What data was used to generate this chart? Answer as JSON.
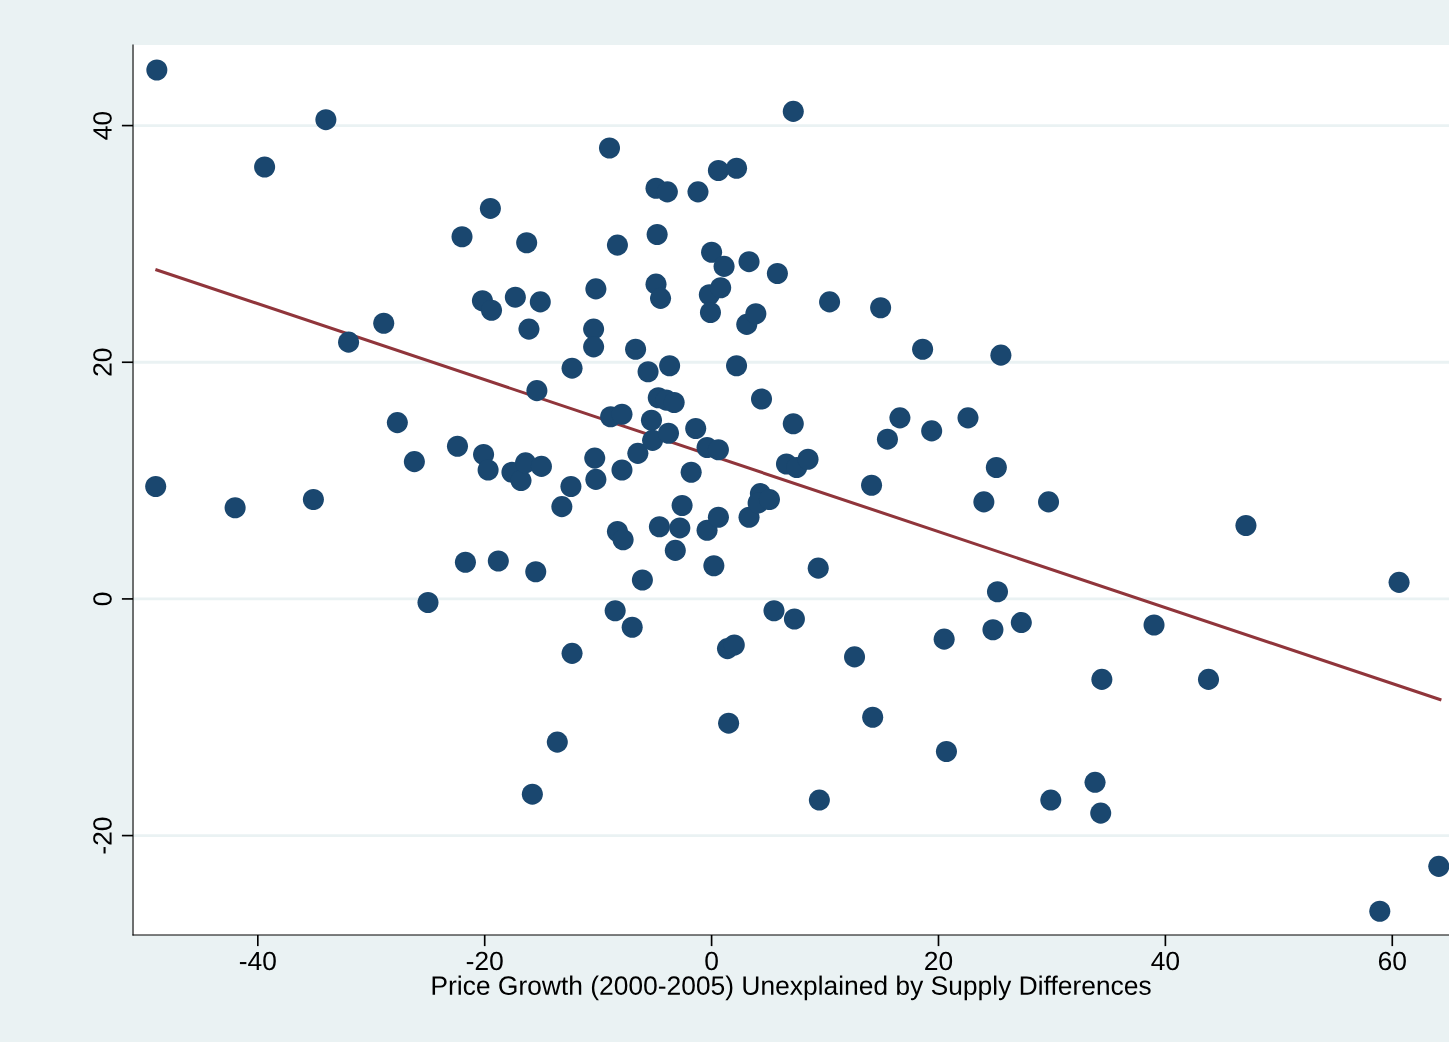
{
  "chart_data": {
    "type": "scatter",
    "xlabel": "Price Growth (2000-2005) Unexplained by Supply Differences",
    "xlim": [
      -51,
      65
    ],
    "ylim": [
      -28.4,
      46.8
    ],
    "xticks": [
      -40,
      -20,
      0,
      20,
      40,
      60
    ],
    "yticks": [
      -20,
      0,
      20,
      40
    ],
    "grid": "y",
    "series": [
      {
        "marker": "circle",
        "color": "#1a476f",
        "x": [
          -48.9,
          -34.0,
          -39.4,
          -49.0,
          -42.0,
          -35.1,
          -32.0,
          -28.9,
          -27.7,
          -26.2,
          -25.0,
          -22.0,
          -22.4,
          -21.7,
          -19.5,
          -20.2,
          -19.4,
          -20.1,
          -19.7,
          -18.8,
          -17.3,
          -17.6,
          -16.8,
          -16.4,
          -16.3,
          -16.1,
          -15.1,
          -15.4,
          -15.0,
          -15.5,
          -15.8,
          -13.6,
          -13.2,
          -12.4,
          -12.3,
          -12.3,
          -10.2,
          -10.4,
          -10.4,
          -10.3,
          -10.2,
          -9.0,
          -8.9,
          -8.3,
          -8.3,
          -7.9,
          -7.9,
          -7.8,
          -8.5,
          -7.0,
          -6.7,
          -6.5,
          -6.1,
          -5.6,
          -5.3,
          -5.2,
          -4.9,
          -4.8,
          -4.9,
          -4.5,
          -4.7,
          -4.6,
          -3.9,
          -4.0,
          -3.7,
          -3.3,
          -3.8,
          -3.2,
          -2.8,
          -2.6,
          -1.8,
          -1.4,
          -1.2,
          -0.4,
          -0.4,
          -0.2,
          -0.1,
          0.0,
          0.2,
          0.6,
          0.6,
          0.6,
          0.8,
          1.1,
          1.4,
          2.0,
          1.5,
          2.2,
          2.2,
          3.1,
          3.3,
          3.3,
          3.9,
          4.4,
          4.3,
          4.1,
          5.1,
          5.5,
          5.8,
          6.6,
          7.2,
          7.2,
          7.5,
          7.3,
          8.5,
          9.4,
          9.5,
          10.4,
          12.6,
          14.1,
          14.2,
          14.9,
          15.5,
          16.6,
          18.6,
          19.4,
          20.5,
          20.7,
          22.6,
          24.0,
          24.8,
          25.1,
          25.2,
          25.5,
          27.3,
          29.7,
          29.9,
          33.8,
          34.3,
          34.4,
          39.0,
          43.8,
          47.1,
          58.9,
          60.6,
          64.1
        ],
        "values": [
          44.7,
          40.5,
          36.5,
          9.5,
          7.7,
          8.4,
          21.7,
          23.3,
          14.9,
          11.6,
          -0.3,
          30.6,
          12.9,
          3.1,
          33.0,
          25.2,
          24.4,
          12.2,
          10.9,
          3.2,
          25.5,
          10.7,
          10.0,
          11.5,
          30.1,
          22.8,
          25.1,
          17.6,
          11.2,
          2.3,
          -16.5,
          -12.1,
          7.8,
          9.5,
          19.5,
          -4.6,
          26.2,
          22.8,
          21.3,
          11.9,
          10.1,
          38.1,
          15.4,
          29.9,
          5.7,
          15.6,
          10.9,
          5.0,
          -1.0,
          -2.4,
          21.1,
          12.3,
          1.6,
          19.2,
          15.1,
          13.4,
          34.7,
          30.8,
          26.6,
          25.4,
          17.0,
          6.1,
          34.4,
          16.8,
          19.7,
          16.6,
          14.0,
          4.1,
          6.0,
          7.9,
          10.7,
          14.4,
          34.4,
          12.8,
          5.8,
          25.7,
          24.2,
          29.3,
          2.8,
          12.6,
          6.9,
          36.2,
          26.3,
          28.1,
          -4.2,
          -3.9,
          -10.5,
          36.4,
          19.7,
          23.2,
          28.5,
          6.9,
          24.1,
          16.9,
          8.9,
          8.1,
          8.4,
          -1.0,
          27.5,
          11.4,
          41.2,
          14.8,
          11.1,
          -1.7,
          11.8,
          2.6,
          -17.0,
          25.1,
          -4.9,
          9.6,
          -10.0,
          24.6,
          13.5,
          15.3,
          21.1,
          14.2,
          -3.4,
          -12.9,
          15.3,
          8.2,
          -2.6,
          11.1,
          0.6,
          20.6,
          -2.0,
          8.2,
          -17.0,
          -15.5,
          -18.1,
          -6.8,
          -2.2,
          -6.8,
          6.2,
          -26.4,
          1.4,
          -22.6
        ]
      },
      {
        "type": "line",
        "marker": "none",
        "color": "#90353b",
        "x": [
          -48.9,
          64.2
        ],
        "values": [
          27.8,
          -8.5
        ]
      }
    ]
  }
}
